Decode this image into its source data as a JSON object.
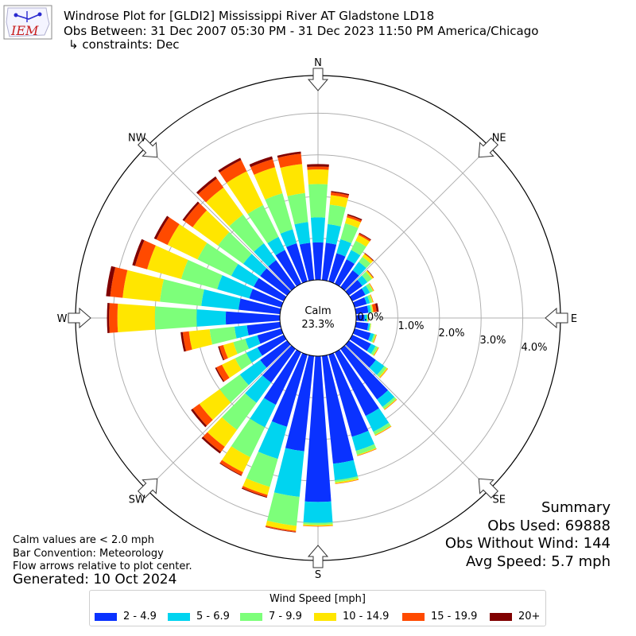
{
  "header": {
    "logo_text": "IEM",
    "title_line1": "Windrose Plot for [GLDI2] Mississippi River  AT Gladstone LD18",
    "title_line2": "Obs Between: 31 Dec 2007 05:30 PM - 31 Dec 2023 11:50 PM America/Chicago",
    "title_line3": "↳ constraints: Dec"
  },
  "notes": {
    "calm_note": "Calm values are < 2.0 mph",
    "bar_convention": "Bar Convention: Meteorology",
    "flow_note": "Flow arrows relative to plot center.",
    "generated": "Generated: 10 Oct 2024"
  },
  "summary": {
    "title": "Summary",
    "obs_used": "Obs Used: 69888",
    "obs_without_wind": "Obs Without Wind: 144",
    "avg_speed": "Avg Speed: 5.7 mph"
  },
  "legend": {
    "title": "Wind Speed [mph]",
    "items": [
      {
        "label": "2 - 4.9",
        "color": "#0a32ff"
      },
      {
        "label": "5 - 6.9",
        "color": "#00d4f0"
      },
      {
        "label": "7 - 9.9",
        "color": "#7dff7a"
      },
      {
        "label": "10 - 14.9",
        "color": "#ffe600"
      },
      {
        "label": "15 - 19.9",
        "color": "#ff4a00"
      },
      {
        "label": "20+",
        "color": "#800000"
      }
    ]
  },
  "chart_data": {
    "type": "windrose",
    "calm_label": "Calm",
    "calm_value": "23.3%",
    "radial_ticks": [
      "0.0%",
      "1.0%",
      "2.0%",
      "3.0%",
      "4.0%"
    ],
    "radial_max": 4.3,
    "compass_labels": [
      "N",
      "NE",
      "E",
      "SE",
      "S",
      "SW",
      "W",
      "NW"
    ],
    "direction_step_deg": 10,
    "directions_deg": [
      0,
      10,
      20,
      30,
      40,
      50,
      60,
      70,
      80,
      90,
      100,
      110,
      120,
      130,
      140,
      150,
      160,
      170,
      180,
      190,
      200,
      210,
      220,
      230,
      240,
      250,
      260,
      270,
      280,
      290,
      300,
      310,
      320,
      330,
      340,
      350
    ],
    "speed_bins": [
      "2 - 4.9",
      "5 - 6.9",
      "7 - 9.9",
      "10 - 14.9",
      "15 - 19.9",
      "20+"
    ],
    "cumulative_percent": [
      [
        0.9,
        1.5,
        2.3,
        2.65,
        2.72,
        2.78
      ],
      [
        0.9,
        1.35,
        1.82,
        2.05,
        2.12,
        2.15
      ],
      [
        0.7,
        1.05,
        1.45,
        1.6,
        1.65,
        1.68
      ],
      [
        0.65,
        0.9,
        1.15,
        1.3,
        1.34,
        1.36
      ],
      [
        0.5,
        0.75,
        0.9,
        0.98,
        1.0,
        1.01
      ],
      [
        0.4,
        0.55,
        0.68,
        0.72,
        0.73,
        0.74
      ],
      [
        0.35,
        0.47,
        0.55,
        0.57,
        0.58,
        0.58
      ],
      [
        0.3,
        0.38,
        0.44,
        0.46,
        0.47,
        0.47
      ],
      [
        0.3,
        0.36,
        0.4,
        0.42,
        0.5,
        0.55
      ],
      [
        0.2,
        0.26,
        0.28,
        0.29,
        0.3,
        0.3
      ],
      [
        0.3,
        0.34,
        0.36,
        0.37,
        0.37,
        0.37
      ],
      [
        0.4,
        0.48,
        0.52,
        0.54,
        0.55,
        0.55
      ],
      [
        0.5,
        0.62,
        0.68,
        0.7,
        0.71,
        0.71
      ],
      [
        0.8,
        1.05,
        1.12,
        1.15,
        1.16,
        1.16
      ],
      [
        1.5,
        1.72,
        1.78,
        1.8,
        1.81,
        1.81
      ],
      [
        1.7,
        2.12,
        2.2,
        2.22,
        2.23,
        2.23
      ],
      [
        2.05,
        2.4,
        2.5,
        2.52,
        2.53,
        2.53
      ],
      [
        2.6,
        3.0,
        3.05,
        3.08,
        3.09,
        3.09
      ],
      [
        3.5,
        4.0,
        4.05,
        4.08,
        4.09,
        4.09
      ],
      [
        2.3,
        3.4,
        4.1,
        4.22,
        4.25,
        4.26
      ],
      [
        1.8,
        2.6,
        3.3,
        3.5,
        3.55,
        3.57
      ],
      [
        1.4,
        2.0,
        2.8,
        3.2,
        3.28,
        3.3
      ],
      [
        1.0,
        1.6,
        2.4,
        2.9,
        3.05,
        3.1
      ],
      [
        0.8,
        1.4,
        2.0,
        2.6,
        2.8,
        2.85
      ],
      [
        0.7,
        1.0,
        1.3,
        1.65,
        1.8,
        1.83
      ],
      [
        0.6,
        0.9,
        1.2,
        1.45,
        1.55,
        1.58
      ],
      [
        0.8,
        1.1,
        1.7,
        2.2,
        2.35,
        2.4
      ],
      [
        1.3,
        2.0,
        3.0,
        3.9,
        4.1,
        4.15
      ],
      [
        1.0,
        1.9,
        2.9,
        3.8,
        4.1,
        4.2
      ],
      [
        0.8,
        1.6,
        2.5,
        3.35,
        3.65,
        3.72
      ],
      [
        0.8,
        1.4,
        2.3,
        3.1,
        3.4,
        3.46
      ],
      [
        0.8,
        1.3,
        2.05,
        2.8,
        3.05,
        3.1
      ],
      [
        0.8,
        1.3,
        2.15,
        2.95,
        3.22,
        3.28
      ],
      [
        0.9,
        1.25,
        2.1,
        3.0,
        3.3,
        3.36
      ],
      [
        0.95,
        1.3,
        2.2,
        2.85,
        3.05,
        3.12
      ],
      [
        0.9,
        1.4,
        2.1,
        2.8,
        3.05,
        3.1
      ]
    ]
  }
}
